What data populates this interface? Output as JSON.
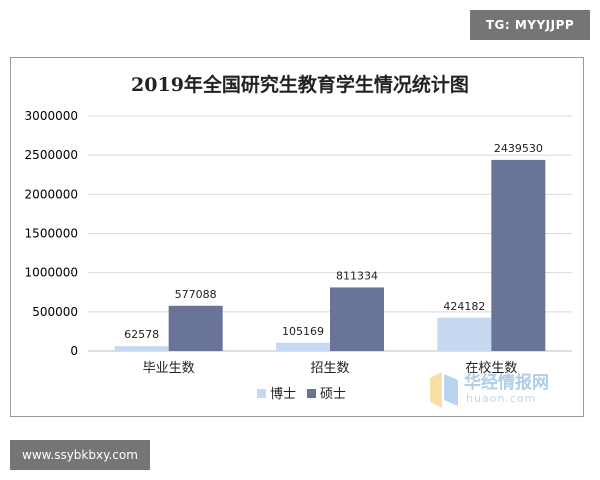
{
  "badges": {
    "top_right": "TG: MYYJJPP",
    "bottom_left": "www.ssybkbxy.com"
  },
  "watermark": {
    "text": "华经情报网",
    "sub": "huaon.com"
  },
  "colors": {
    "doctor": "#c6d9f1",
    "master": "#6a7499",
    "grid": "#d9d9d9",
    "axis_text": "#000000"
  },
  "chart_data": {
    "type": "bar",
    "title": "2019年全国研究生教育学生情况统计图",
    "categories": [
      "毕业生数",
      "招生数",
      "在校生数"
    ],
    "series": [
      {
        "name": "博士",
        "values": [
          62578,
          105169,
          424182
        ]
      },
      {
        "name": "硕士",
        "values": [
          577088,
          811334,
          2439530
        ]
      }
    ],
    "ylim": [
      0,
      3000000
    ],
    "yticks": [
      0,
      500000,
      1000000,
      1500000,
      2000000,
      2500000,
      3000000
    ],
    "ytick_labels": [
      "0",
      "500000",
      "1000000",
      "1500000",
      "2000000",
      "2500000",
      "3000000"
    ],
    "xlabel": "",
    "ylabel": "",
    "grid": true,
    "legend_position": "bottom"
  }
}
